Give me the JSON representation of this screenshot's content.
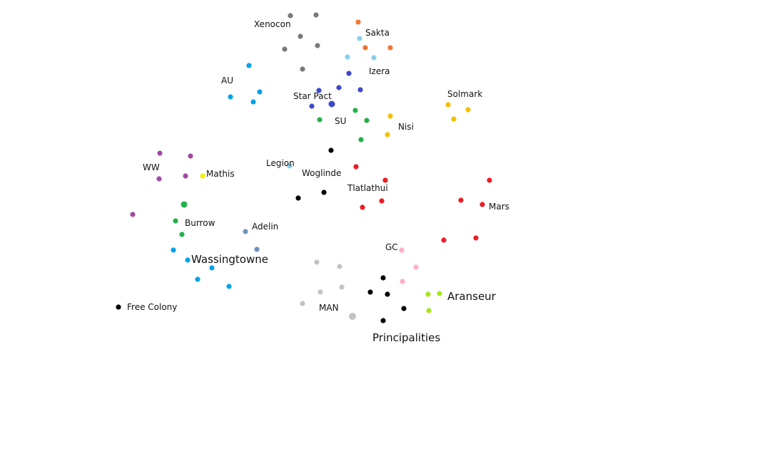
{
  "colors": {
    "gray": "#7a7a7a",
    "orange": "#ee7733",
    "lightblue": "#88d0ec",
    "blue": "#3f48cc",
    "cyan": "#00a2e8",
    "green": "#22b14c",
    "yellow": "#f4c000",
    "purple": "#a349a4",
    "brightyellow": "#f0f000",
    "black": "#000000",
    "red": "#ed1c24",
    "steel": "#7092be",
    "lightgray": "#c3c3c3",
    "pink": "#ffaec9",
    "lime": "#a8e61d"
  },
  "groups": [
    {
      "id": "xenocon",
      "name": "Xenocon",
      "color": "gray"
    },
    {
      "id": "sakta",
      "name": "Sakta",
      "color": "orange"
    },
    {
      "id": "izera",
      "name": "Izera",
      "color": "blue"
    },
    {
      "id": "au",
      "name": "AU",
      "color": "cyan"
    },
    {
      "id": "star-pact",
      "name": "Star Pact",
      "color": "blue"
    },
    {
      "id": "solmark",
      "name": "Solmark",
      "color": "yellow"
    },
    {
      "id": "su",
      "name": "SU",
      "color": "green"
    },
    {
      "id": "nisi",
      "name": "Nisi",
      "color": "yellow"
    },
    {
      "id": "ww",
      "name": "WW",
      "color": "purple"
    },
    {
      "id": "mathis",
      "name": "Mathis",
      "color": "brightyellow"
    },
    {
      "id": "legion",
      "name": "Legion",
      "color": "lightblue"
    },
    {
      "id": "woglinde",
      "name": "Woglinde",
      "color": "black"
    },
    {
      "id": "tlatlathui",
      "name": "Tlatlathui",
      "color": "red"
    },
    {
      "id": "mars",
      "name": "Mars",
      "color": "red"
    },
    {
      "id": "burrow",
      "name": "Burrow",
      "color": "green"
    },
    {
      "id": "adelin",
      "name": "Adelin",
      "color": "steel"
    },
    {
      "id": "gc",
      "name": "GC",
      "color": "pink"
    },
    {
      "id": "wassingtowne",
      "name": "Wassingtowne",
      "color": "cyan"
    },
    {
      "id": "aranseur",
      "name": "Aranseur",
      "color": "lime"
    },
    {
      "id": "free-colony",
      "name": "Free Colony",
      "color": "black"
    },
    {
      "id": "man",
      "name": "MAN",
      "color": "lightgray"
    },
    {
      "id": "principalities",
      "name": "Principalities",
      "color": "black"
    }
  ]
}
